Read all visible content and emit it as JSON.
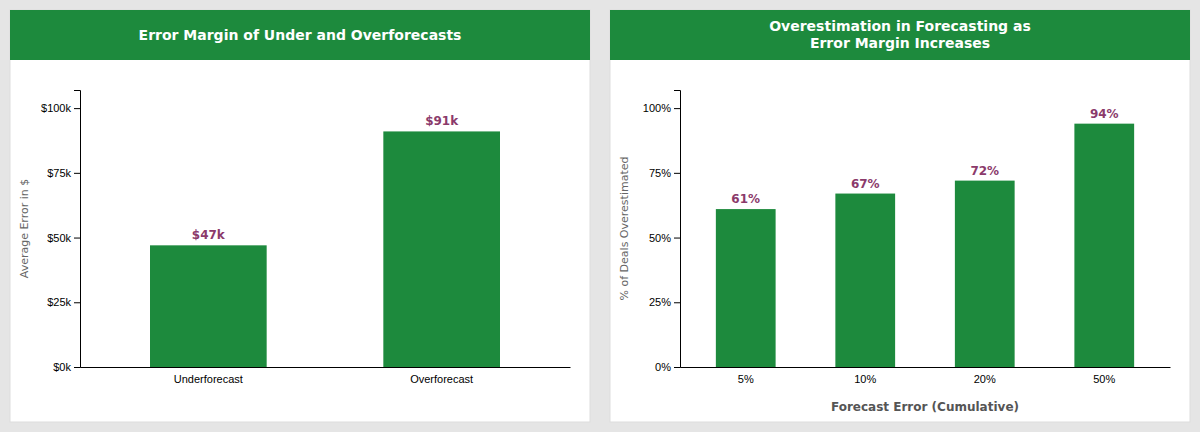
{
  "chart_data": [
    {
      "type": "bar",
      "title": "Error Margin of Under and Overforecasts",
      "categories": [
        "Underforecast",
        "Overforecast"
      ],
      "values": [
        47000,
        91000
      ],
      "value_labels": [
        "$47k",
        "$91k"
      ],
      "data_labels": true,
      "color": "#1d8a3d",
      "ylabel": "Average Error in $",
      "ylim": [
        0,
        107000
      ],
      "yticks": [
        {
          "value": 0,
          "label": "$0k"
        },
        {
          "value": 25000,
          "label": "$25k"
        },
        {
          "value": 50000,
          "label": "$50k"
        },
        {
          "value": 75000,
          "label": "$75k"
        },
        {
          "value": 100000,
          "label": "$100k"
        }
      ],
      "grid": false
    },
    {
      "type": "bar",
      "title": "Overestimation in Forecasting as\nError Margin Increases",
      "categories": [
        "5%",
        "10%",
        "20%",
        "50%"
      ],
      "values": [
        61,
        67,
        72,
        94
      ],
      "value_labels": [
        "61%",
        "67%",
        "72%",
        "94%"
      ],
      "data_labels": true,
      "color": "#1d8a3d",
      "ylabel": "% of Deals Overestimated",
      "xlabel": "Forecast Error (Cumulative)",
      "ylim": [
        0,
        107
      ],
      "yticks": [
        {
          "value": 0,
          "label": "0%"
        },
        {
          "value": 25,
          "label": "25%"
        },
        {
          "value": 50,
          "label": "50%"
        },
        {
          "value": 75,
          "label": "75%"
        },
        {
          "value": 100,
          "label": "100%"
        }
      ],
      "grid": false
    }
  ]
}
